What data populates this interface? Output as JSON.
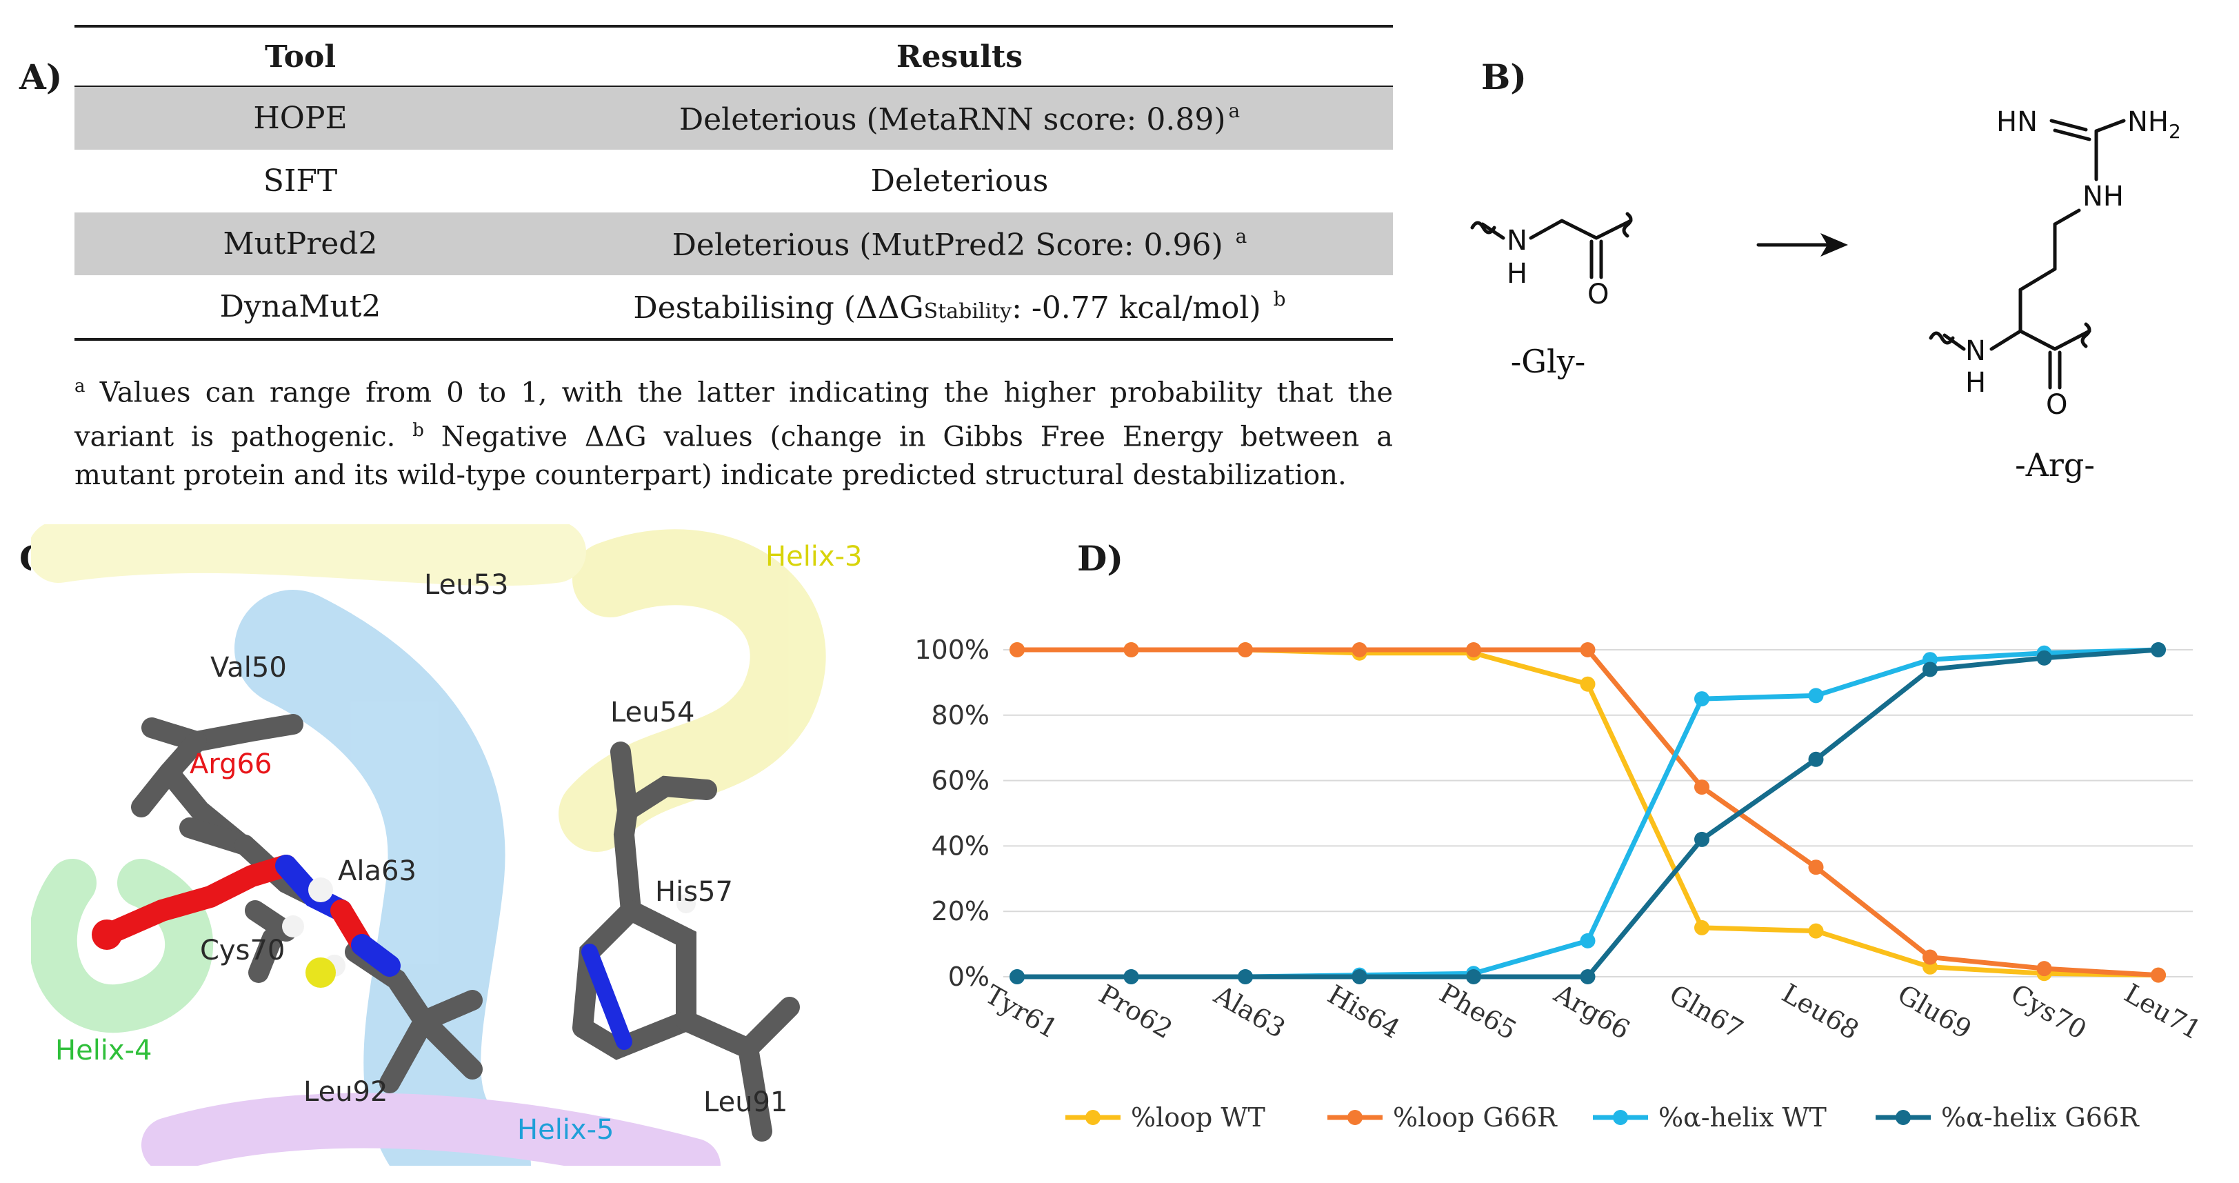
{
  "panels": {
    "a": "A)",
    "b": "B)",
    "c": "C)",
    "d": "D)"
  },
  "table": {
    "headers": [
      "Tool",
      "Results"
    ],
    "rows": [
      {
        "tool": "HOPE",
        "result": "Deleterious (MetaRNN score: 0.89)",
        "sup": "a",
        "shaded": true
      },
      {
        "tool": "SIFT",
        "result": "Deleterious",
        "sup": "",
        "shaded": false
      },
      {
        "tool": "MutPred2",
        "result": "Deleterious (MutPred2 Score: 0.96) ",
        "sup": "a",
        "shaded": true
      },
      {
        "tool": "DynaMut2",
        "result_pre": "Destabilising (ΔΔG",
        "result_sub": "Stability",
        "result_post": ": -0.77 kcal/mol) ",
        "sup": "b",
        "shaded": false
      }
    ]
  },
  "footnote": {
    "mark_a": "a",
    "text_a": " Values can range from 0 to 1, with the latter indicating the higher probability that the variant is pathogenic. ",
    "mark_b": "b",
    "text_b": " Negative ΔΔG values (change in Gibbs Free Energy between a mutant protein and its wild-type counterpart) indicate predicted structural destabilization."
  },
  "chem": {
    "gly_label": "-Gly-",
    "arg_label": "-Arg-",
    "atoms": {
      "N": "N",
      "H": "H",
      "O": "O",
      "HN": "HN",
      "NH2": "NH",
      "NH2_sub": "2",
      "NH": "NH"
    }
  },
  "structure": {
    "helix_labels": [
      {
        "text": "Helix-3",
        "color": "#d8d40a"
      },
      {
        "text": "Helix-4",
        "color": "#2fbf3a"
      },
      {
        "text": "Helix-5",
        "color": "#1f9fd8"
      }
    ],
    "residues": [
      "Leu53",
      "Val50",
      "Leu54",
      "Arg66",
      "Ala63",
      "His57",
      "Cys70",
      "Leu92",
      "Leu91"
    ],
    "highlight_color": "#e8161a",
    "stick_color": "#5a5a5a"
  },
  "chart_data": {
    "type": "line",
    "categories": [
      "Tyr61",
      "Pro62",
      "Ala63",
      "His64",
      "Phe65",
      "Arg66",
      "Gln67",
      "Leu68",
      "Glu69",
      "Cys70",
      "Leu71"
    ],
    "ylim": [
      0,
      100
    ],
    "yticks": [
      "0%",
      "20%",
      "40%",
      "60%",
      "80%",
      "100%"
    ],
    "grid": true,
    "legend_position": "bottom",
    "series": [
      {
        "name": "%loop WT",
        "color": "#fbbf1a",
        "values": [
          100,
          100,
          100,
          99,
          99,
          89.5,
          15,
          14,
          3,
          1,
          0.5
        ]
      },
      {
        "name": "%loop G66R",
        "color": "#f47a30",
        "values": [
          100,
          100,
          100,
          100,
          100,
          100,
          58,
          33.5,
          6,
          2.5,
          0.5
        ]
      },
      {
        "name": "%α-helix WT",
        "color": "#20b6e8",
        "values": [
          0,
          0,
          0,
          0.5,
          1,
          11,
          85,
          86,
          97,
          99,
          100
        ]
      },
      {
        "name": "%α-helix G66R",
        "color": "#156c8c",
        "values": [
          0,
          0,
          0,
          0,
          0,
          0,
          42,
          66.5,
          94,
          97.5,
          100
        ]
      }
    ]
  }
}
